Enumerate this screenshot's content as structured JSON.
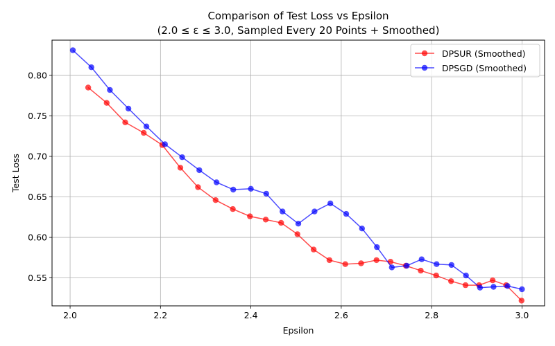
{
  "chart_data": {
    "type": "line",
    "title": "Comparison of Test Loss vs Epsilon",
    "subtitle": "(2.0 ≤ ε ≤ 3.0, Sampled Every 20 Points + Smoothed)",
    "xlabel": "Epsilon",
    "ylabel": "Test Loss",
    "xlim": [
      1.96,
      3.05
    ],
    "ylim": [
      0.5155,
      0.8435
    ],
    "xticks": [
      2.0,
      2.2,
      2.4,
      2.6,
      2.8,
      3.0
    ],
    "yticks": [
      0.55,
      0.6,
      0.65,
      0.7,
      0.75,
      0.8
    ],
    "xtick_labels": [
      "2.0",
      "2.2",
      "2.4",
      "2.6",
      "2.8",
      "3.0"
    ],
    "ytick_labels": [
      "0.55",
      "0.60",
      "0.65",
      "0.70",
      "0.75",
      "0.80"
    ],
    "grid": true,
    "legend_position": "top-right",
    "series": [
      {
        "name": "DPSUR (Smoothed)",
        "color": "#ff0000",
        "x": [
          2.04,
          2.081,
          2.122,
          2.163,
          2.204,
          2.244,
          2.283,
          2.322,
          2.36,
          2.398,
          2.433,
          2.467,
          2.503,
          2.539,
          2.574,
          2.609,
          2.644,
          2.678,
          2.709,
          2.743,
          2.776,
          2.81,
          2.843,
          2.875,
          2.905,
          2.935,
          2.965,
          2.999
        ],
        "y": [
          0.785,
          0.766,
          0.742,
          0.729,
          0.714,
          0.686,
          0.662,
          0.646,
          0.635,
          0.626,
          0.622,
          0.618,
          0.604,
          0.585,
          0.572,
          0.567,
          0.568,
          0.572,
          0.57,
          0.565,
          0.559,
          0.553,
          0.546,
          0.541,
          0.541,
          0.547,
          0.541,
          0.522
        ]
      },
      {
        "name": "DPSGD (Smoothed)",
        "color": "#0000ff",
        "x": [
          2.006,
          2.047,
          2.088,
          2.129,
          2.169,
          2.21,
          2.248,
          2.286,
          2.324,
          2.361,
          2.4,
          2.434,
          2.47,
          2.505,
          2.541,
          2.576,
          2.611,
          2.646,
          2.679,
          2.712,
          2.745,
          2.778,
          2.811,
          2.844,
          2.876,
          2.907,
          2.937,
          2.968,
          3.0
        ],
        "y": [
          0.831,
          0.81,
          0.782,
          0.759,
          0.737,
          0.715,
          0.699,
          0.683,
          0.668,
          0.659,
          0.66,
          0.654,
          0.632,
          0.617,
          0.632,
          0.642,
          0.629,
          0.611,
          0.588,
          0.563,
          0.565,
          0.573,
          0.567,
          0.566,
          0.553,
          0.538,
          0.539,
          0.54,
          0.536
        ]
      }
    ]
  }
}
